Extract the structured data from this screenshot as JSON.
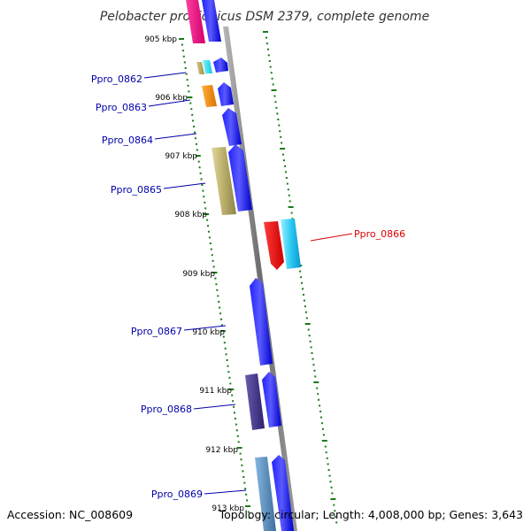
{
  "title": "Pelobacter propionicus DSM 2379, complete genome",
  "footer": {
    "accession": "Accession: NC_008609",
    "topology": "Topology: circular; Length: 4,008,000 bp; Genes: 3,643"
  },
  "colors": {
    "backbone": "#8a8a8a",
    "tick": "#1a7a1a",
    "forward_gene": "#0000ee",
    "label_default": "#0000aa",
    "label_highlight": "#dd0000"
  },
  "scale_labels": [
    "905 kbp",
    "906 kbp",
    "907 kbp",
    "908 kbp",
    "909 kbp",
    "910 kbp",
    "911 kbp",
    "912 kbp",
    "913 kbp"
  ],
  "genes": [
    {
      "name": "Ppro_0862",
      "color": "#0000aa"
    },
    {
      "name": "Ppro_0863",
      "color": "#0000aa"
    },
    {
      "name": "Ppro_0864",
      "color": "#0000aa"
    },
    {
      "name": "Ppro_0865",
      "color": "#0000aa"
    },
    {
      "name": "Ppro_0866",
      "color": "#dd0000"
    },
    {
      "name": "Ppro_0867",
      "color": "#0000aa"
    },
    {
      "name": "Ppro_0868",
      "color": "#0000aa"
    },
    {
      "name": "Ppro_0869",
      "color": "#0000aa"
    }
  ]
}
